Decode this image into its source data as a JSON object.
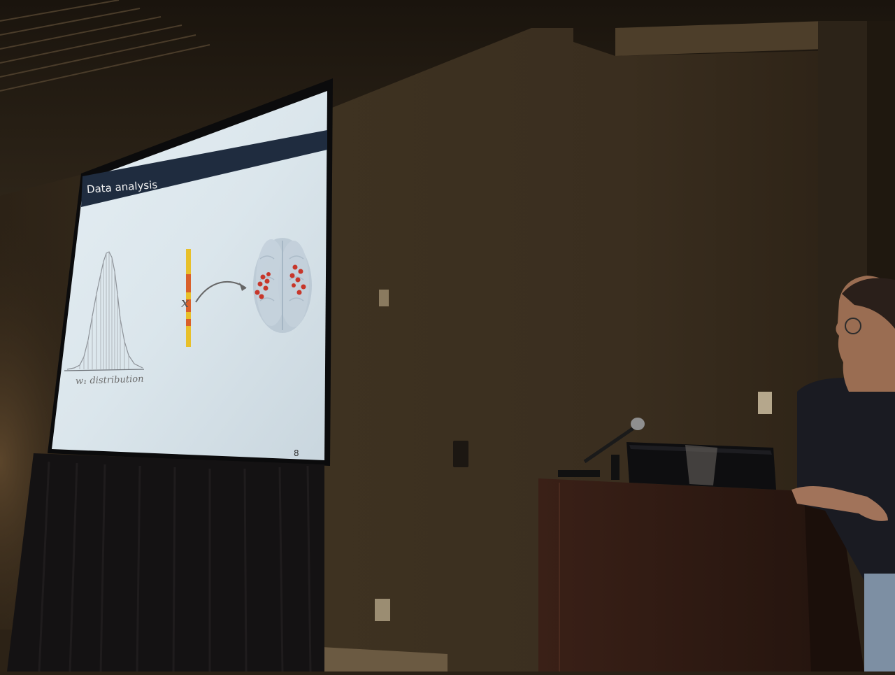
{
  "slide": {
    "title": "Data analysis",
    "caption": "w₁ distribution",
    "variable": "x",
    "page_number": "8"
  },
  "colors": {
    "wall": "#3a2e1f",
    "screen": "#dbe6ec",
    "title_bar": "#1e2a3c",
    "podium": "#2b1812",
    "highlight_bar": "#e8c02a",
    "electrode": "#c7362a"
  }
}
